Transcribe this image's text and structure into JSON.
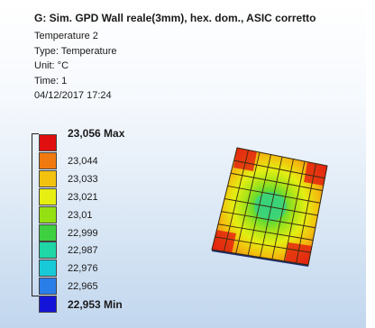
{
  "header": {
    "title": "G: Sim. GPD Wall reale(3mm), hex. dom., ASIC corretto",
    "result": "Temperature 2",
    "type": "Type: Temperature",
    "unit": "Unit: °C",
    "time": "Time: 1",
    "date": "04/12/2017 17:24"
  },
  "legend": [
    {
      "label": "23,056 Max",
      "color": "#e01010"
    },
    {
      "label": "23,044",
      "color": "#f07a10"
    },
    {
      "label": "23,033",
      "color": "#f2c20e"
    },
    {
      "label": "23,021",
      "color": "#e6ee12"
    },
    {
      "label": "23,01",
      "color": "#94e012"
    },
    {
      "label": "22,999",
      "color": "#3ed040"
    },
    {
      "label": "22,987",
      "color": "#1ed6a6"
    },
    {
      "label": "22,976",
      "color": "#18cad8"
    },
    {
      "label": "22,965",
      "color": "#2a7ee8"
    },
    {
      "label": "22,953 Min",
      "color": "#1414d8"
    }
  ]
}
